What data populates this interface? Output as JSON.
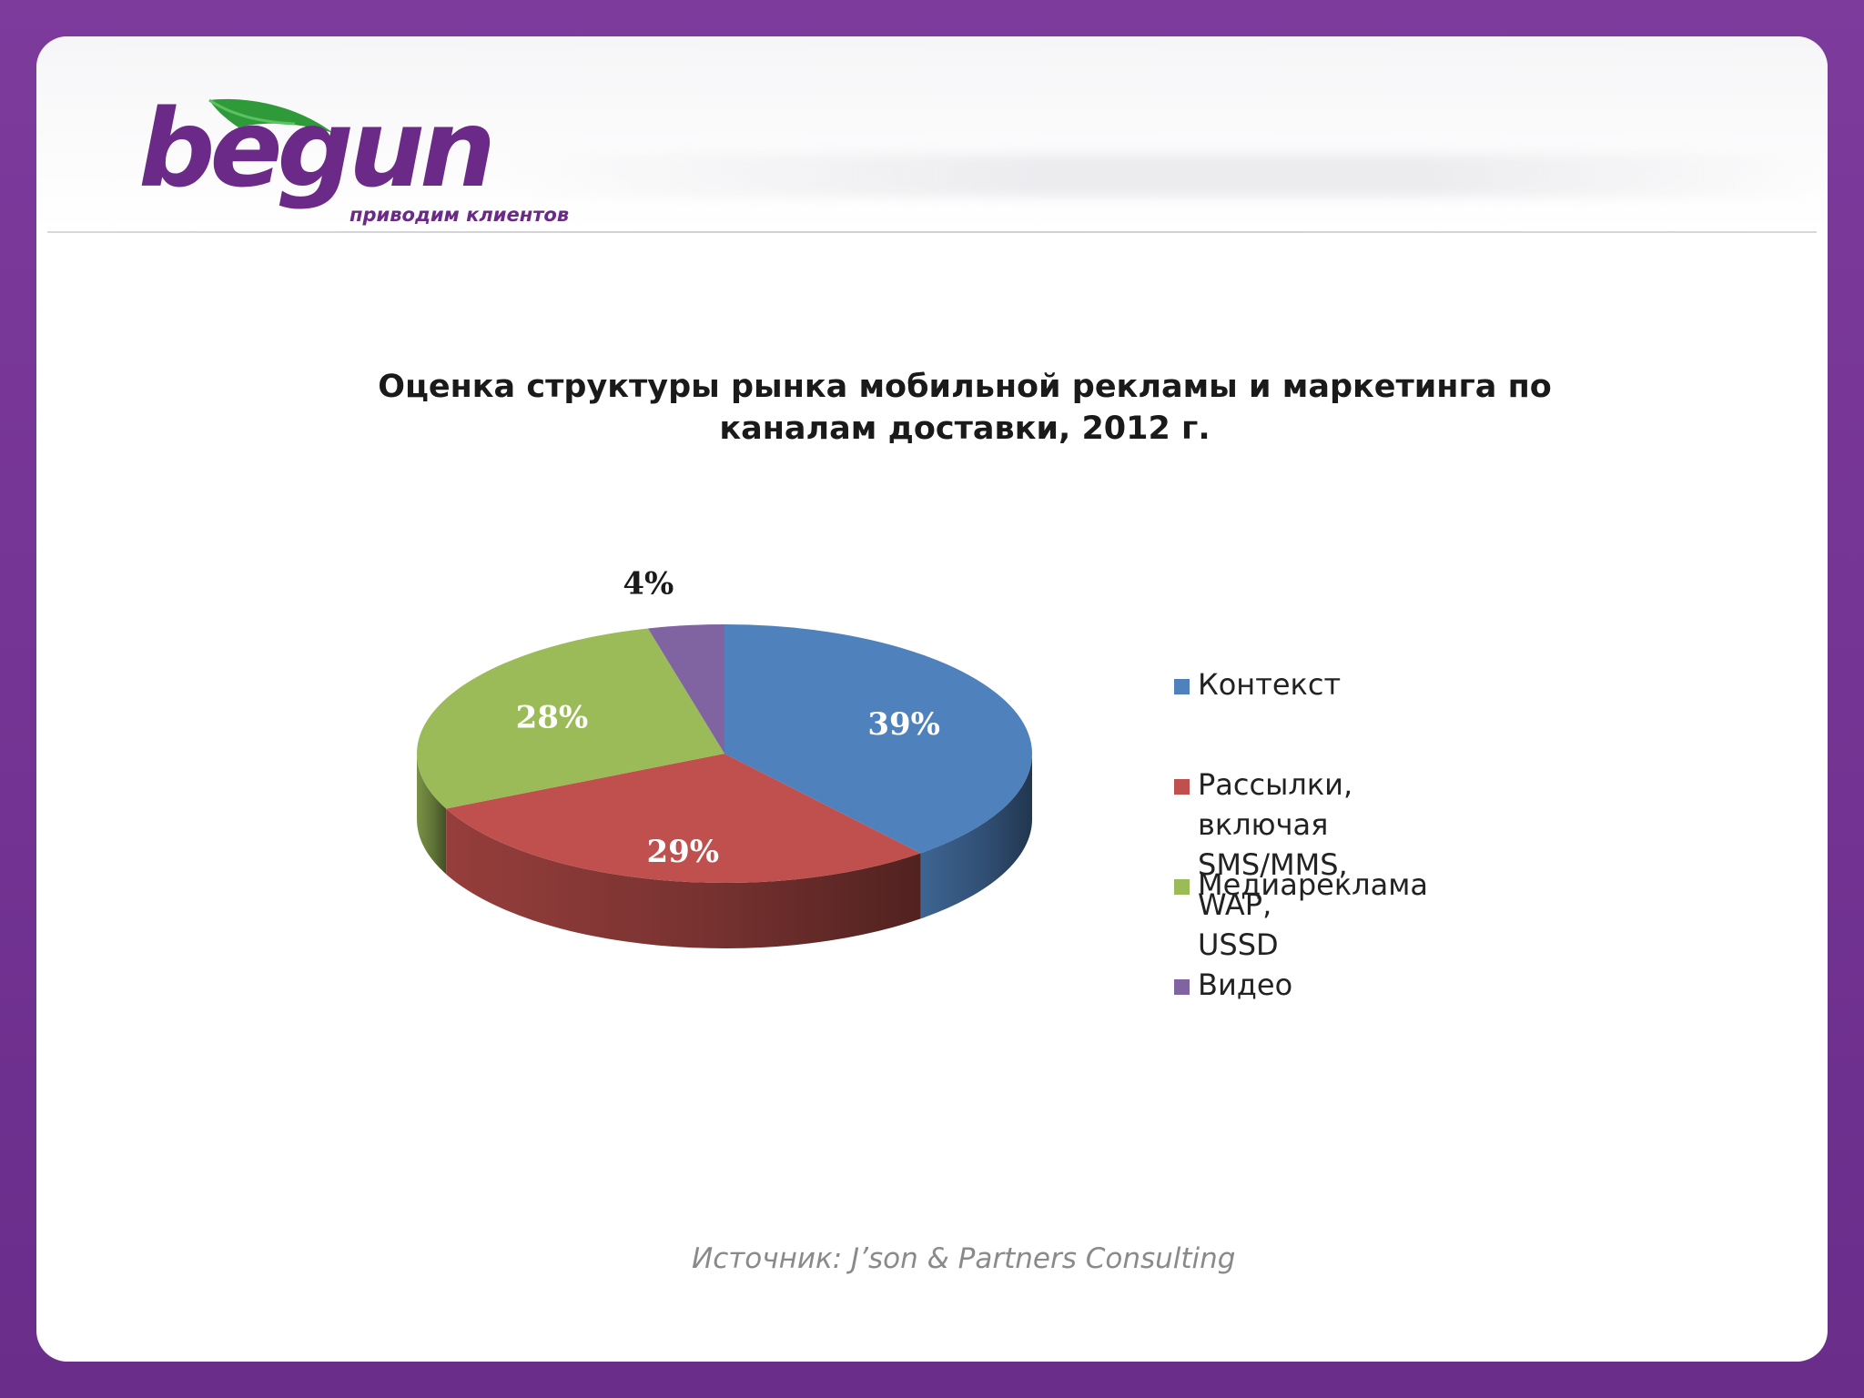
{
  "logo": {
    "wordmark": "begun",
    "tagline": "приводим клиентов",
    "colors": {
      "purple": "#6b2a87",
      "leaf": "#2e9a3a"
    }
  },
  "chart_data": {
    "type": "pie",
    "title_lines": [
      "Оценка структуры рынка мобильной рекламы и маркетинга по",
      "каналам доставки, 2012 г."
    ],
    "slices": [
      {
        "label": "Контекст",
        "value": 39,
        "display": "39%",
        "color": "#4f81bd"
      },
      {
        "label": "Рассылки, включая\nSMS/MMS, WAP, USSD",
        "value": 29,
        "display": "29%",
        "color": "#c0504d"
      },
      {
        "label": "Медиареклама",
        "value": 28,
        "display": "28%",
        "color": "#9bbb59"
      },
      {
        "label": "Видео",
        "value": 4,
        "display": "4%",
        "color": "#8064a2"
      }
    ],
    "legend_position": "right",
    "three_d": true
  },
  "source": "Источник: J’son & Partners Consulting",
  "frame_color": "#7d3b9c"
}
